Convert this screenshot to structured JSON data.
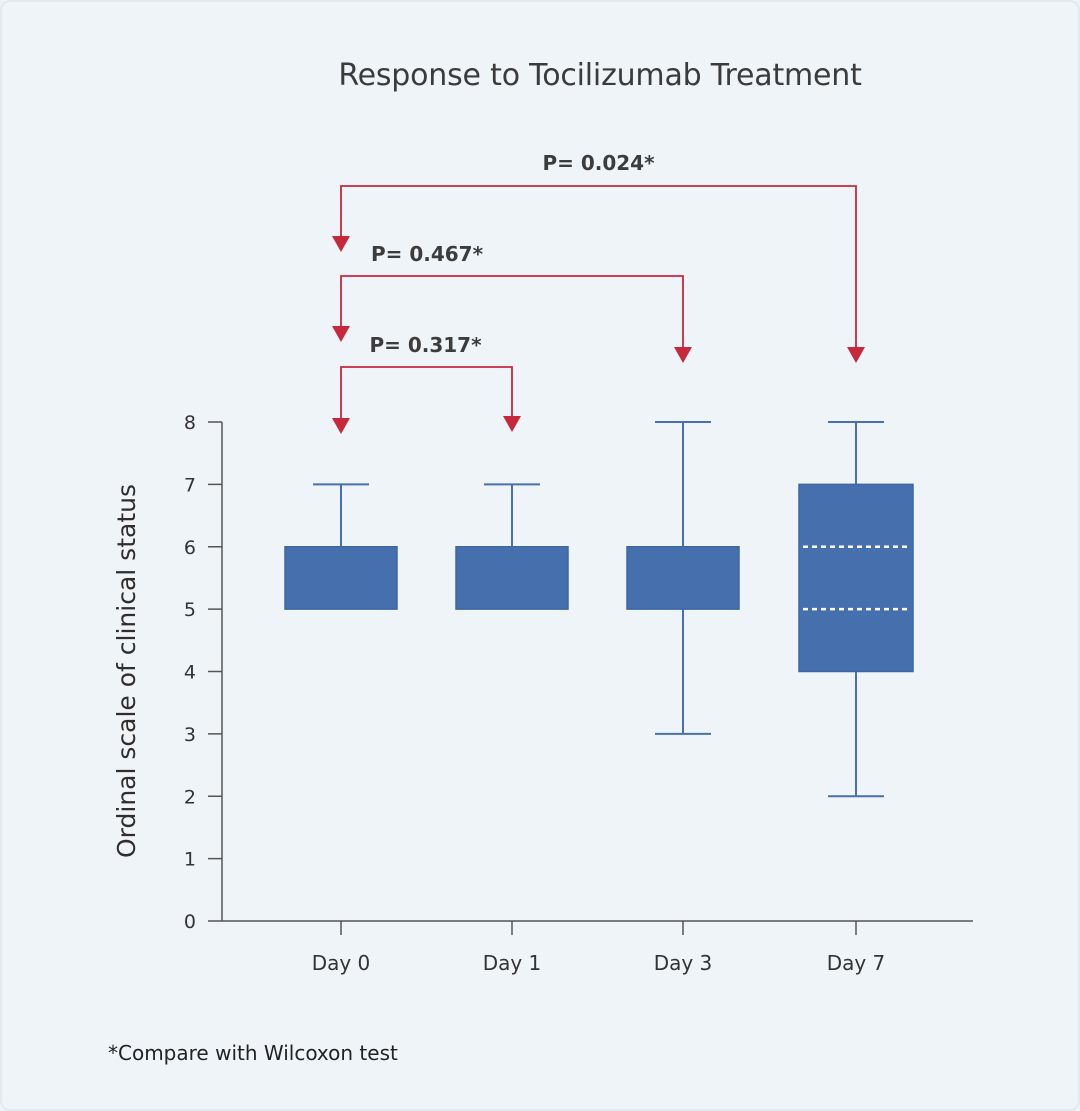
{
  "chart_data": {
    "type": "box",
    "title": "Response to Tocilizumab Treatment",
    "ylabel": "Ordinal scale of clinical status",
    "xlabel": "",
    "ylim": [
      0,
      8
    ],
    "yticks": [
      0,
      1,
      2,
      3,
      4,
      5,
      6,
      7,
      8
    ],
    "categories": [
      "Day 0",
      "Day 1",
      "Day 3",
      "Day 7"
    ],
    "boxes": [
      {
        "category": "Day 0",
        "min": 5,
        "q1": 5,
        "median": 5,
        "q3": 6,
        "max": 7
      },
      {
        "category": "Day 1",
        "min": 5,
        "q1": 5,
        "median": 5,
        "q3": 6,
        "max": 7
      },
      {
        "category": "Day 3",
        "min": 3,
        "q1": 5,
        "median": 5,
        "q3": 6,
        "max": 8
      },
      {
        "category": "Day 7",
        "min": 2,
        "q1": 4,
        "median": 5,
        "q3": 7,
        "max": 8,
        "dotted_lines": [
          5,
          6
        ]
      }
    ],
    "comparisons": [
      {
        "from": "Day 0",
        "to": "Day 1",
        "label": "P= 0.317*"
      },
      {
        "from": "Day 0",
        "to": "Day 3",
        "label": "P= 0.467*"
      },
      {
        "from": "Day 0",
        "to": "Day 7",
        "label": "P= 0.024*"
      }
    ],
    "colors": {
      "box_fill": "#4570ad",
      "whisker": "#4a6fae",
      "bracket": "#c8283c",
      "axis": "#555555"
    },
    "grid": false
  },
  "footnote": "*Compare with Wilcoxon test"
}
